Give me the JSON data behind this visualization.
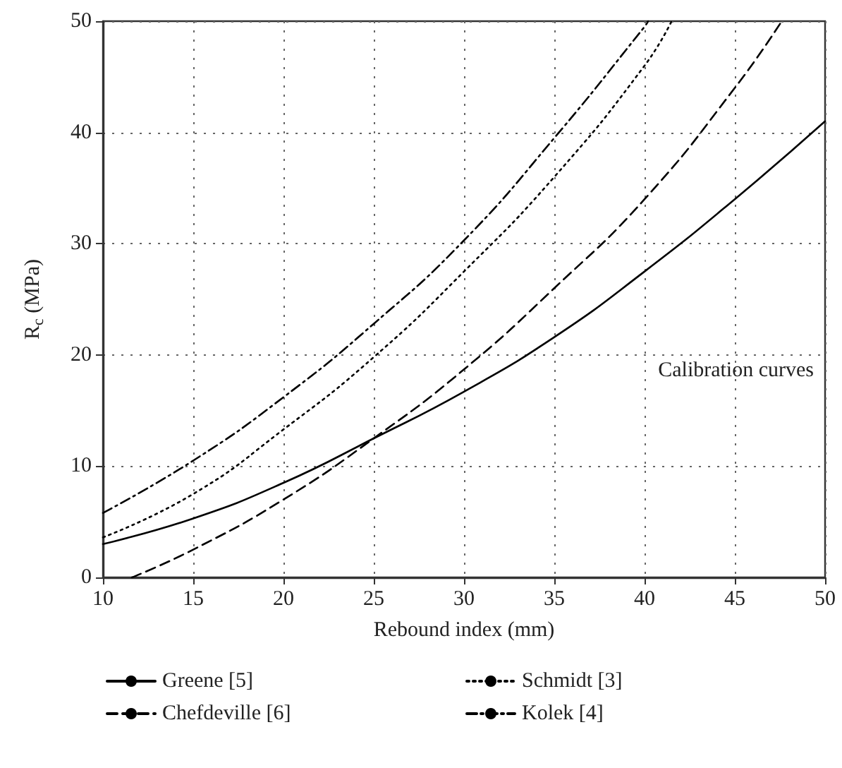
{
  "chart_data": {
    "type": "line",
    "xlabel": "Rebound index (mm)",
    "ylabel": "R$_{c}$ (MPa)",
    "annotations": [
      "Calibration curves"
    ],
    "xlim": [
      10,
      50
    ],
    "xticks": [
      10,
      15,
      20,
      25,
      30,
      35,
      40,
      45,
      50
    ],
    "ylim": [
      0,
      50
    ],
    "yticks": [
      0,
      10,
      20,
      30,
      40,
      50
    ],
    "grid": true,
    "legend": "bottom",
    "marker": "none",
    "series": [
      {
        "name": "Greene [5]",
        "color": "#000000",
        "line_style": "solid",
        "x": [
          10,
          15,
          20,
          25,
          30,
          35,
          40,
          45,
          50
        ],
        "values": [
          3,
          5.3,
          8.5,
          12.5,
          16.7,
          21.6,
          27.5,
          34,
          41
        ]
      },
      {
        "name": "Chefdeville [6]",
        "color": "#000000",
        "line_style": "dashed",
        "x": [
          11.6,
          15,
          20,
          25,
          30,
          35,
          40,
          45,
          47.6
        ],
        "values": [
          0,
          2.5,
          7,
          12.5,
          18.7,
          26,
          34,
          44,
          50
        ]
      },
      {
        "name": "Schmidt [3]",
        "color": "#000000",
        "line_style": "dotted",
        "x": [
          10,
          15,
          20,
          25,
          30,
          35,
          40,
          41.5
        ],
        "values": [
          3.6,
          7.5,
          13.3,
          19.8,
          27.5,
          36,
          46,
          50
        ]
      },
      {
        "name": "Kolek [4]",
        "color": "#000000",
        "line_style": "dashdot",
        "x": [
          10,
          15,
          20,
          25,
          30,
          35,
          40,
          40.2
        ],
        "values": [
          5.8,
          10.5,
          16.2,
          22.8,
          30.3,
          39.5,
          49.5,
          50
        ]
      }
    ]
  }
}
